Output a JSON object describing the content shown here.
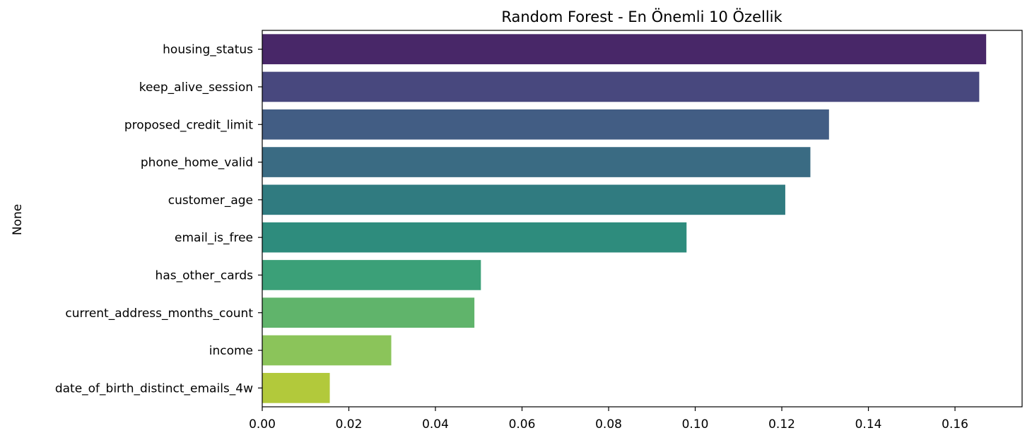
{
  "chart_data": {
    "type": "bar",
    "orientation": "horizontal",
    "title": "Random Forest - En Önemli 10 Özellik",
    "xlabel": "",
    "ylabel": "None",
    "xlim": [
      0,
      0.1755
    ],
    "xticks": [
      "0.00",
      "0.02",
      "0.04",
      "0.06",
      "0.08",
      "0.10",
      "0.12",
      "0.14",
      "0.16"
    ],
    "xtick_values": [
      0,
      0.02,
      0.04,
      0.06,
      0.08,
      0.1,
      0.12,
      0.14,
      0.16
    ],
    "grid": false,
    "categories": [
      "housing_status",
      "keep_alive_session",
      "proposed_credit_limit",
      "phone_home_valid",
      "customer_age",
      "email_is_free",
      "has_other_cards",
      "current_address_months_count",
      "income",
      "date_of_birth_distinct_emails_4w"
    ],
    "values": [
      0.1672,
      0.1656,
      0.1309,
      0.1266,
      0.1208,
      0.098,
      0.0505,
      0.049,
      0.0298,
      0.0156
    ],
    "colors": [
      "#482768",
      "#48487e",
      "#425d84",
      "#3a6b83",
      "#307b80",
      "#2e8c7d",
      "#3ba078",
      "#60b46b",
      "#8bc45a",
      "#b2c93b"
    ]
  }
}
